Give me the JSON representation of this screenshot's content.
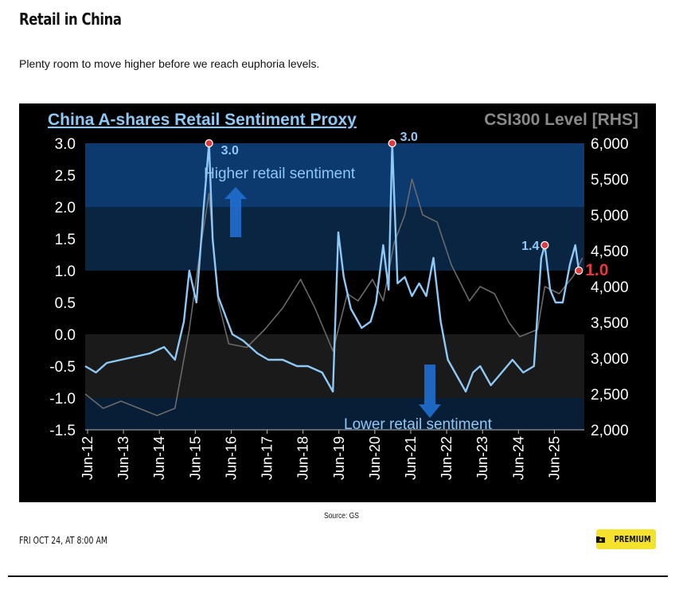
{
  "header": {
    "title": "Retail in China",
    "subtitle": "Plenty room to move higher before we reach euphoria levels."
  },
  "chart_data": {
    "type": "line",
    "title": "China A-shares Retail Sentiment Proxy",
    "right_axis_title": "CSI300 Level [RHS]",
    "left_ylim": [
      -1.5,
      3.0
    ],
    "right_ylim": [
      2000,
      6000
    ],
    "left_ticks": [
      "3.0",
      "2.5",
      "2.0",
      "1.5",
      "1.0",
      "0.5",
      "0.0",
      "-0.5",
      "-1.0",
      "-1.5"
    ],
    "right_ticks": [
      "6,000",
      "5,500",
      "5,000",
      "4,500",
      "4,000",
      "3,500",
      "3,000",
      "2,500",
      "2,000"
    ],
    "categories": [
      "Jun-12",
      "Jun-13",
      "Jun-14",
      "Jun-15",
      "Jun-16",
      "Jun-17",
      "Jun-18",
      "Jun-19",
      "Jun-20",
      "Jun-21",
      "Jun-22",
      "Jun-23",
      "Jun-24",
      "Jun-25"
    ],
    "x_range": [
      2012.0,
      2025.9
    ],
    "bands": [
      {
        "from": 2.0,
        "to": 3.0,
        "color": "#0d3a6e"
      },
      {
        "from": 1.0,
        "to": 2.0,
        "color": "#0a2542"
      },
      {
        "from": 0.0,
        "to": 1.0,
        "color": "#000000"
      },
      {
        "from": -1.0,
        "to": 0.0,
        "color": "#1a1a1a"
      },
      {
        "from": -1.5,
        "to": -1.0,
        "color": "#081e36"
      }
    ],
    "annotations": {
      "higher": "Higher retail sentiment",
      "lower": "Lower retail sentiment"
    },
    "highlights": [
      {
        "x": 2015.45,
        "y": 3.0,
        "label": "3.0"
      },
      {
        "x": 2020.55,
        "y": 3.0,
        "label": "3.0"
      },
      {
        "x": 2024.8,
        "y": 1.4,
        "label": "1.4"
      },
      {
        "x": 2025.75,
        "y": 1.0,
        "label": "1.0"
      }
    ],
    "series": [
      {
        "name": "Retail Sentiment Proxy",
        "axis": "left",
        "color": "#8ec8f5",
        "x": [
          2012.0,
          2012.3,
          2012.6,
          2013.0,
          2013.4,
          2013.8,
          2014.2,
          2014.5,
          2014.75,
          2014.9,
          2015.1,
          2015.3,
          2015.45,
          2015.55,
          2015.7,
          2015.9,
          2016.1,
          2016.4,
          2016.8,
          2017.1,
          2017.5,
          2017.9,
          2018.2,
          2018.6,
          2018.9,
          2019.05,
          2019.2,
          2019.4,
          2019.7,
          2019.95,
          2020.1,
          2020.3,
          2020.45,
          2020.55,
          2020.7,
          2020.9,
          2021.1,
          2021.3,
          2021.5,
          2021.7,
          2021.9,
          2022.1,
          2022.3,
          2022.6,
          2022.8,
          2023.0,
          2023.3,
          2023.6,
          2023.9,
          2024.2,
          2024.5,
          2024.7,
          2024.8,
          2024.95,
          2025.1,
          2025.3,
          2025.5,
          2025.65,
          2025.75
        ],
        "values": [
          -0.5,
          -0.6,
          -0.45,
          -0.4,
          -0.35,
          -0.3,
          -0.2,
          -0.4,
          0.2,
          1.0,
          0.5,
          2.0,
          3.0,
          1.5,
          0.6,
          0.3,
          0.0,
          -0.1,
          -0.3,
          -0.4,
          -0.4,
          -0.5,
          -0.5,
          -0.6,
          -0.9,
          1.6,
          0.9,
          0.4,
          0.1,
          0.2,
          0.5,
          1.4,
          0.7,
          3.0,
          0.8,
          0.9,
          0.6,
          0.8,
          0.6,
          1.2,
          0.2,
          -0.4,
          -0.6,
          -0.9,
          -0.6,
          -0.5,
          -0.8,
          -0.6,
          -0.4,
          -0.6,
          -0.5,
          1.2,
          1.4,
          0.7,
          0.5,
          0.5,
          1.1,
          1.4,
          1.0
        ]
      },
      {
        "name": "CSI300 Level [RHS]",
        "axis": "right",
        "color": "#6a6a6a",
        "x": [
          2012.0,
          2012.5,
          2013.0,
          2013.5,
          2014.0,
          2014.5,
          2014.9,
          2015.2,
          2015.45,
          2015.7,
          2016.0,
          2016.5,
          2017.0,
          2017.5,
          2018.0,
          2018.4,
          2018.9,
          2019.3,
          2019.6,
          2020.0,
          2020.3,
          2020.6,
          2020.9,
          2021.1,
          2021.4,
          2021.8,
          2022.2,
          2022.7,
          2023.0,
          2023.4,
          2023.8,
          2024.1,
          2024.6,
          2024.8,
          2025.2,
          2025.6,
          2025.85
        ],
        "values": [
          2500,
          2300,
          2400,
          2300,
          2200,
          2300,
          3400,
          4500,
          5300,
          3800,
          3200,
          3150,
          3400,
          3700,
          4100,
          3700,
          3100,
          3900,
          3800,
          4100,
          3800,
          4600,
          5000,
          5500,
          5000,
          4900,
          4300,
          3800,
          4000,
          3900,
          3500,
          3300,
          3400,
          4000,
          3900,
          4150,
          4400
        ]
      }
    ]
  },
  "source": "Source: GS",
  "footer": {
    "date": "FRI OCT 24, AT 8:00 AM",
    "premium_label": "PREMIUM"
  },
  "colors": {
    "premium_bg": "#f5e22d",
    "highlight": "#e0393e",
    "title_blue": "#8ec8f5"
  }
}
